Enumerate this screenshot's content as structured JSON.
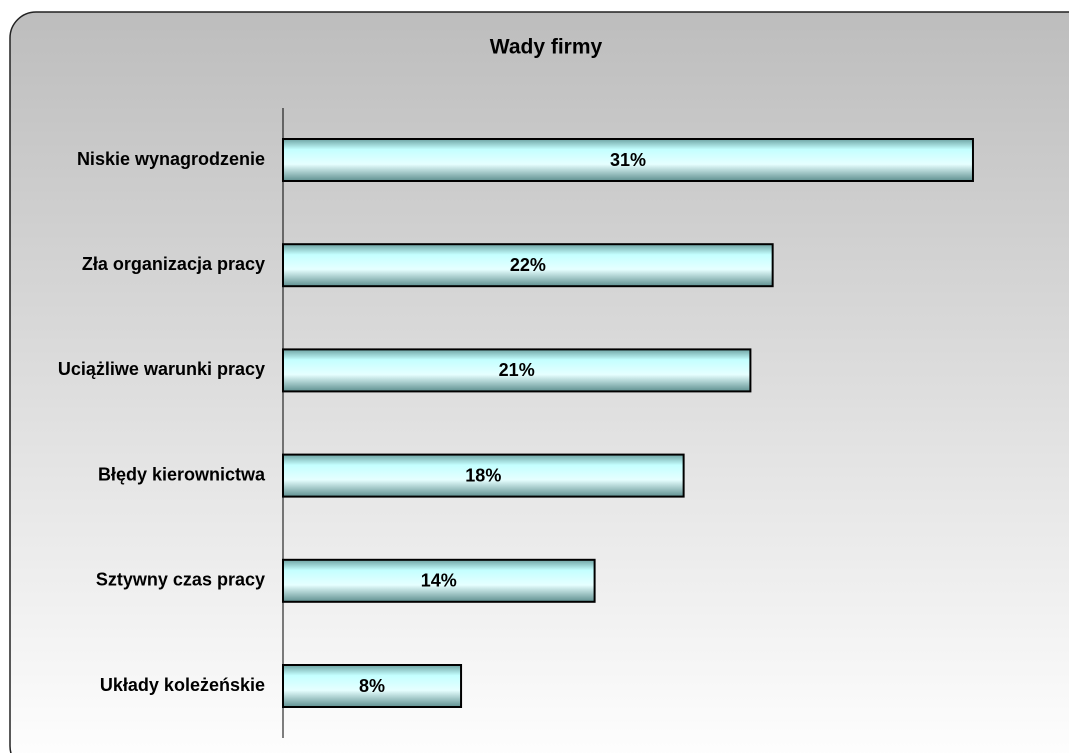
{
  "chart_data": {
    "type": "bar",
    "orientation": "horizontal",
    "title": "Wady firmy",
    "categories": [
      "Niskie wynagrodzenie",
      "Zła organizacja pracy",
      "Uciążliwe warunki pracy",
      "Błędy kierownictwa",
      "Sztywny czas pracy",
      "Układy koleżeńskie"
    ],
    "values": [
      31,
      22,
      21,
      18,
      14,
      8
    ],
    "value_labels": [
      "31%",
      "22%",
      "21%",
      "18%",
      "14%",
      "8%"
    ],
    "color": "#c4ffff",
    "xlim": [
      0,
      35
    ]
  }
}
